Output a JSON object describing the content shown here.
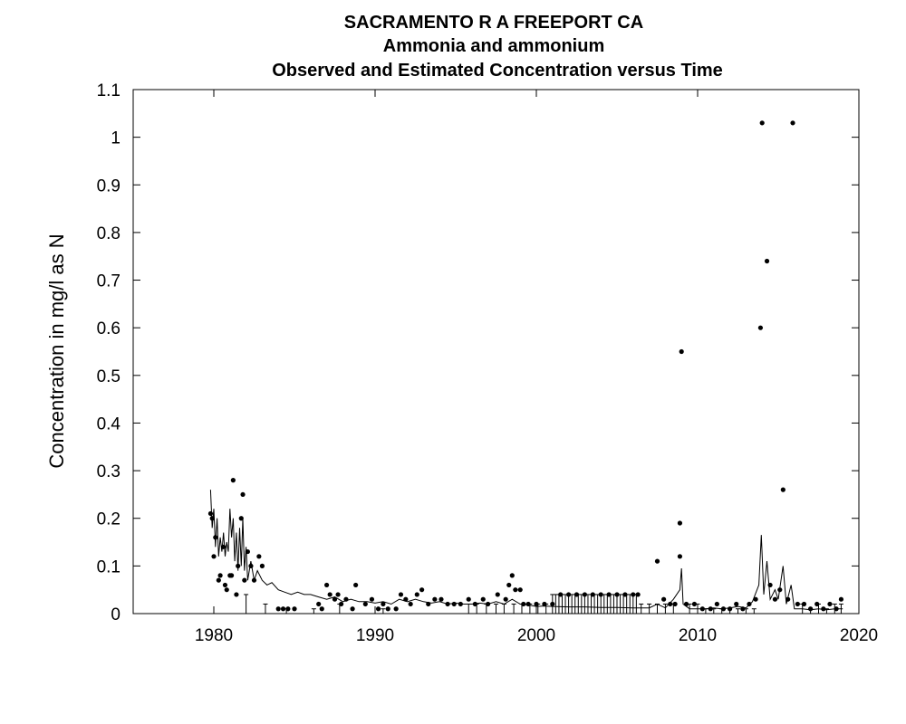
{
  "chart_data": {
    "type": "scatter",
    "title": "SACRAMENTO R A FREEPORT CA",
    "subtitle": "Ammonia and ammonium",
    "subtitle2": "Observed and Estimated Concentration versus Time",
    "xlabel": "",
    "ylabel": "Concentration in mg/l as N",
    "xlim": [
      1975,
      2020
    ],
    "ylim": [
      0,
      1.1
    ],
    "xticks": [
      "1980",
      "1990",
      "2000",
      "2010",
      "2020"
    ],
    "yticks": [
      "0",
      "0.1",
      "0.2",
      "0.3",
      "0.4",
      "0.5",
      "0.6",
      "0.7",
      "0.8",
      "0.9",
      "1",
      "1.1"
    ],
    "grid": false,
    "series": [
      {
        "kind": "observed-points",
        "points": [
          [
            1979.8,
            0.21
          ],
          [
            1979.9,
            0.2
          ],
          [
            1980.0,
            0.12
          ],
          [
            1980.1,
            0.16
          ],
          [
            1980.3,
            0.07
          ],
          [
            1980.4,
            0.08
          ],
          [
            1980.6,
            0.14
          ],
          [
            1980.7,
            0.06
          ],
          [
            1980.8,
            0.05
          ],
          [
            1981.0,
            0.08
          ],
          [
            1981.1,
            0.08
          ],
          [
            1981.2,
            0.28
          ],
          [
            1981.4,
            0.04
          ],
          [
            1981.5,
            0.1
          ],
          [
            1981.7,
            0.2
          ],
          [
            1981.8,
            0.25
          ],
          [
            1981.9,
            0.07
          ],
          [
            1982.1,
            0.13
          ],
          [
            1982.3,
            0.1
          ],
          [
            1982.5,
            0.07
          ],
          [
            1982.8,
            0.12
          ],
          [
            1983.0,
            0.1
          ],
          [
            1984.0,
            0.01
          ],
          [
            1984.3,
            0.01
          ],
          [
            1984.6,
            0.01
          ],
          [
            1985.0,
            0.01
          ],
          [
            1986.5,
            0.02
          ],
          [
            1986.7,
            0.01
          ],
          [
            1987.0,
            0.06
          ],
          [
            1987.2,
            0.04
          ],
          [
            1987.5,
            0.03
          ],
          [
            1987.7,
            0.04
          ],
          [
            1987.9,
            0.02
          ],
          [
            1988.2,
            0.03
          ],
          [
            1988.6,
            0.01
          ],
          [
            1988.8,
            0.06
          ],
          [
            1989.4,
            0.02
          ],
          [
            1989.8,
            0.03
          ],
          [
            1990.2,
            0.01
          ],
          [
            1990.5,
            0.02
          ],
          [
            1990.8,
            0.01
          ],
          [
            1991.3,
            0.01
          ],
          [
            1991.6,
            0.04
          ],
          [
            1991.9,
            0.03
          ],
          [
            1992.2,
            0.02
          ],
          [
            1992.6,
            0.04
          ],
          [
            1992.9,
            0.05
          ],
          [
            1993.3,
            0.02
          ],
          [
            1993.7,
            0.03
          ],
          [
            1994.1,
            0.03
          ],
          [
            1994.5,
            0.02
          ],
          [
            1994.9,
            0.02
          ],
          [
            1995.3,
            0.02
          ],
          [
            1995.8,
            0.03
          ],
          [
            1996.2,
            0.02
          ],
          [
            1996.7,
            0.03
          ],
          [
            1997.0,
            0.02
          ],
          [
            1997.6,
            0.04
          ],
          [
            1998.1,
            0.03
          ],
          [
            1998.3,
            0.06
          ],
          [
            1998.5,
            0.08
          ],
          [
            1998.7,
            0.05
          ],
          [
            1999.0,
            0.05
          ],
          [
            1999.2,
            0.02
          ],
          [
            1999.5,
            0.02
          ],
          [
            2000.0,
            0.02
          ],
          [
            2000.5,
            0.02
          ],
          [
            2001.0,
            0.02
          ],
          [
            2001.5,
            0.04
          ],
          [
            2002.0,
            0.04
          ],
          [
            2002.5,
            0.04
          ],
          [
            2003.0,
            0.04
          ],
          [
            2003.5,
            0.04
          ],
          [
            2004.0,
            0.04
          ],
          [
            2004.5,
            0.04
          ],
          [
            2005.0,
            0.04
          ],
          [
            2005.5,
            0.04
          ],
          [
            2006.0,
            0.04
          ],
          [
            2006.3,
            0.04
          ],
          [
            2007.5,
            0.11
          ],
          [
            2007.9,
            0.03
          ],
          [
            2008.3,
            0.02
          ],
          [
            2008.6,
            0.02
          ],
          [
            2008.9,
            0.19
          ],
          [
            2008.9,
            0.12
          ],
          [
            2009.0,
            0.55
          ],
          [
            2009.3,
            0.02
          ],
          [
            2009.8,
            0.02
          ],
          [
            2010.3,
            0.01
          ],
          [
            2010.8,
            0.01
          ],
          [
            2011.2,
            0.02
          ],
          [
            2011.6,
            0.01
          ],
          [
            2012.0,
            0.01
          ],
          [
            2012.4,
            0.02
          ],
          [
            2012.8,
            0.01
          ],
          [
            2013.2,
            0.02
          ],
          [
            2013.6,
            0.03
          ],
          [
            2013.9,
            0.6
          ],
          [
            2014.0,
            1.03
          ],
          [
            2014.3,
            0.74
          ],
          [
            2014.5,
            0.06
          ],
          [
            2014.8,
            0.03
          ],
          [
            2015.1,
            0.05
          ],
          [
            2015.3,
            0.26
          ],
          [
            2015.6,
            0.03
          ],
          [
            2015.9,
            1.03
          ],
          [
            2016.2,
            0.02
          ],
          [
            2016.6,
            0.02
          ],
          [
            2017.0,
            0.01
          ],
          [
            2017.4,
            0.02
          ],
          [
            2017.8,
            0.01
          ],
          [
            2018.2,
            0.02
          ],
          [
            2018.6,
            0.01
          ],
          [
            2018.9,
            0.03
          ]
        ]
      },
      {
        "kind": "estimated-line",
        "points": [
          [
            1979.8,
            0.26
          ],
          [
            1979.9,
            0.18
          ],
          [
            1980.0,
            0.22
          ],
          [
            1980.1,
            0.14
          ],
          [
            1980.2,
            0.2
          ],
          [
            1980.3,
            0.12
          ],
          [
            1980.4,
            0.16
          ],
          [
            1980.5,
            0.13
          ],
          [
            1980.6,
            0.17
          ],
          [
            1980.7,
            0.12
          ],
          [
            1980.8,
            0.15
          ],
          [
            1980.9,
            0.13
          ],
          [
            1981.0,
            0.22
          ],
          [
            1981.1,
            0.16
          ],
          [
            1981.2,
            0.2
          ],
          [
            1981.3,
            0.11
          ],
          [
            1981.4,
            0.17
          ],
          [
            1981.5,
            0.09
          ],
          [
            1981.6,
            0.18
          ],
          [
            1981.7,
            0.1
          ],
          [
            1981.8,
            0.2
          ],
          [
            1981.9,
            0.09
          ],
          [
            1982.0,
            0.14
          ],
          [
            1982.1,
            0.07
          ],
          [
            1982.3,
            0.11
          ],
          [
            1982.5,
            0.07
          ],
          [
            1982.7,
            0.09
          ],
          [
            1983.0,
            0.07
          ],
          [
            1983.3,
            0.06
          ],
          [
            1983.6,
            0.065
          ],
          [
            1984.0,
            0.05
          ],
          [
            1984.4,
            0.045
          ],
          [
            1984.8,
            0.04
          ],
          [
            1985.2,
            0.045
          ],
          [
            1985.6,
            0.04
          ],
          [
            1986.0,
            0.04
          ],
          [
            1986.5,
            0.035
          ],
          [
            1987.0,
            0.03
          ],
          [
            1987.5,
            0.035
          ],
          [
            1988.0,
            0.025
          ],
          [
            1988.5,
            0.03
          ],
          [
            1989.0,
            0.025
          ],
          [
            1989.5,
            0.025
          ],
          [
            1990.0,
            0.022
          ],
          [
            1990.5,
            0.025
          ],
          [
            1991.0,
            0.02
          ],
          [
            1991.5,
            0.03
          ],
          [
            1992.0,
            0.025
          ],
          [
            1992.5,
            0.03
          ],
          [
            1993.0,
            0.025
          ],
          [
            1993.5,
            0.022
          ],
          [
            1994.0,
            0.025
          ],
          [
            1994.5,
            0.02
          ],
          [
            1995.0,
            0.022
          ],
          [
            1995.5,
            0.02
          ],
          [
            1996.0,
            0.02
          ],
          [
            1996.5,
            0.022
          ],
          [
            1997.0,
            0.02
          ],
          [
            1997.5,
            0.025
          ],
          [
            1998.0,
            0.02
          ],
          [
            1998.5,
            0.03
          ],
          [
            1999.0,
            0.02
          ],
          [
            1999.5,
            0.018
          ],
          [
            2000.0,
            0.015
          ],
          [
            2000.5,
            0.016
          ],
          [
            2001.0,
            0.015
          ],
          [
            2002.0,
            0.014
          ],
          [
            2003.0,
            0.014
          ],
          [
            2004.0,
            0.013
          ],
          [
            2005.0,
            0.013
          ],
          [
            2006.0,
            0.012
          ],
          [
            2007.0,
            0.012
          ],
          [
            2007.5,
            0.02
          ],
          [
            2008.0,
            0.012
          ],
          [
            2008.5,
            0.03
          ],
          [
            2008.9,
            0.05
          ],
          [
            2009.0,
            0.095
          ],
          [
            2009.1,
            0.02
          ],
          [
            2009.5,
            0.01
          ],
          [
            2010.0,
            0.01
          ],
          [
            2010.5,
            0.01
          ],
          [
            2011.0,
            0.012
          ],
          [
            2011.5,
            0.01
          ],
          [
            2012.0,
            0.012
          ],
          [
            2012.5,
            0.015
          ],
          [
            2013.0,
            0.012
          ],
          [
            2013.4,
            0.025
          ],
          [
            2013.8,
            0.06
          ],
          [
            2013.95,
            0.165
          ],
          [
            2014.1,
            0.04
          ],
          [
            2014.3,
            0.11
          ],
          [
            2014.5,
            0.03
          ],
          [
            2014.8,
            0.05
          ],
          [
            2015.0,
            0.03
          ],
          [
            2015.3,
            0.1
          ],
          [
            2015.5,
            0.02
          ],
          [
            2015.8,
            0.06
          ],
          [
            2016.0,
            0.01
          ],
          [
            2016.5,
            0.01
          ],
          [
            2017.0,
            0.008
          ],
          [
            2017.5,
            0.01
          ],
          [
            2018.0,
            0.008
          ],
          [
            2018.5,
            0.01
          ],
          [
            2019.0,
            0.01
          ]
        ]
      },
      {
        "kind": "censored-bars",
        "points": [
          [
            1982.0,
            0.04
          ],
          [
            1983.2,
            0.02
          ],
          [
            1984.5,
            0.01
          ],
          [
            1986.2,
            0.01
          ],
          [
            1987.8,
            0.02
          ],
          [
            1990.5,
            0.01
          ],
          [
            1995.8,
            0.02
          ],
          [
            1996.3,
            0.02
          ],
          [
            1996.9,
            0.02
          ],
          [
            1997.5,
            0.02
          ],
          [
            1998.0,
            0.02
          ],
          [
            1998.6,
            0.02
          ],
          [
            1999.1,
            0.02
          ],
          [
            1999.6,
            0.02
          ],
          [
            2000.1,
            0.02
          ],
          [
            2000.6,
            0.02
          ],
          [
            2001.0,
            0.04
          ],
          [
            2001.2,
            0.04
          ],
          [
            2001.4,
            0.04
          ],
          [
            2001.6,
            0.04
          ],
          [
            2001.8,
            0.04
          ],
          [
            2002.0,
            0.04
          ],
          [
            2002.2,
            0.04
          ],
          [
            2002.4,
            0.04
          ],
          [
            2002.6,
            0.04
          ],
          [
            2002.8,
            0.04
          ],
          [
            2003.0,
            0.04
          ],
          [
            2003.2,
            0.04
          ],
          [
            2003.4,
            0.04
          ],
          [
            2003.6,
            0.04
          ],
          [
            2003.8,
            0.04
          ],
          [
            2004.0,
            0.04
          ],
          [
            2004.2,
            0.04
          ],
          [
            2004.4,
            0.04
          ],
          [
            2004.6,
            0.04
          ],
          [
            2004.8,
            0.04
          ],
          [
            2005.0,
            0.04
          ],
          [
            2005.2,
            0.04
          ],
          [
            2005.4,
            0.04
          ],
          [
            2005.6,
            0.04
          ],
          [
            2005.8,
            0.04
          ],
          [
            2006.0,
            0.04
          ],
          [
            2006.2,
            0.04
          ],
          [
            2006.5,
            0.02
          ],
          [
            2007.0,
            0.02
          ],
          [
            2007.5,
            0.02
          ],
          [
            2008.0,
            0.02
          ],
          [
            2008.5,
            0.02
          ],
          [
            2009.5,
            0.02
          ],
          [
            2010.0,
            0.02
          ],
          [
            2010.5,
            0.01
          ],
          [
            2011.0,
            0.01
          ],
          [
            2011.5,
            0.01
          ],
          [
            2012.0,
            0.01
          ],
          [
            2012.5,
            0.01
          ],
          [
            2013.0,
            0.01
          ],
          [
            2013.5,
            0.01
          ],
          [
            2016.5,
            0.02
          ],
          [
            2017.0,
            0.01
          ],
          [
            2017.5,
            0.02
          ],
          [
            2018.0,
            0.01
          ],
          [
            2018.5,
            0.02
          ],
          [
            2018.9,
            0.02
          ]
        ]
      }
    ]
  }
}
